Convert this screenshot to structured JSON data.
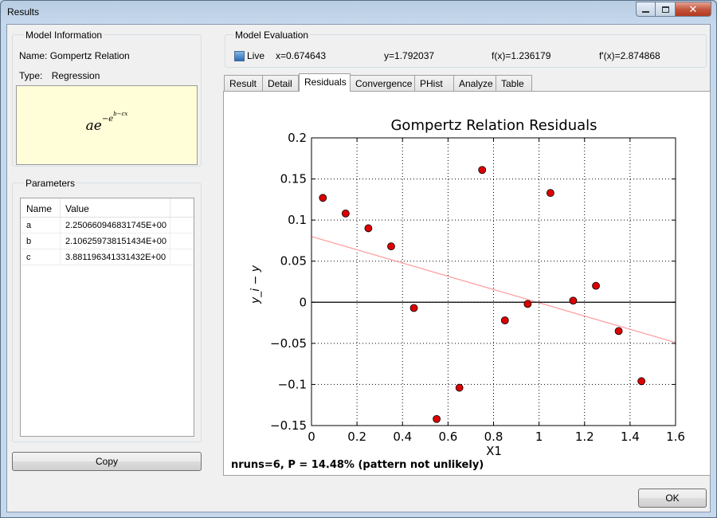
{
  "window": {
    "title": "Results"
  },
  "model_info": {
    "group_label": "Model Information",
    "name_label": "Name:",
    "name_value": "Gompertz Relation",
    "type_label": "Type:",
    "type_value": "Regression",
    "formula": {
      "base": "ae",
      "exp_prefix": "−e",
      "exp_sup": "b−cx"
    }
  },
  "parameters": {
    "group_label": "Parameters",
    "columns": [
      "Name",
      "Value"
    ],
    "rows": [
      {
        "name": "a",
        "value": "2.250660946831745E+00"
      },
      {
        "name": "b",
        "value": "2.106259738151434E+00"
      },
      {
        "name": "c",
        "value": "3.881196341331432E+00"
      }
    ]
  },
  "copy_button": "Copy",
  "model_eval": {
    "group_label": "Model Evaluation",
    "live_label": "Live",
    "live_checked": true,
    "x": "x=0.674643",
    "y": "y=1.792037",
    "fx": "f(x)=1.236179",
    "fpx": "f'(x)=2.874868"
  },
  "tabs": [
    "Result",
    "Detail",
    "Residuals",
    "Convergence",
    "PHist",
    "Analyze",
    "Table"
  ],
  "active_tab": "Residuals",
  "chart_data": {
    "type": "scatter",
    "title": "Gompertz Relation Residuals",
    "xlabel": "X1",
    "ylabel": "y_i − y",
    "xlim": [
      0,
      1.6
    ],
    "ylim": [
      -0.15,
      0.2
    ],
    "xticks": [
      "0",
      "0.2",
      "0.4",
      "0.6",
      "0.8",
      "1",
      "1.2",
      "1.4",
      "1.6"
    ],
    "yticks": [
      "0.2",
      "0.15",
      "0.1",
      "0.05",
      "0",
      "−0.05",
      "−0.1",
      "−0.15"
    ],
    "grid": true,
    "points": {
      "x": [
        0.05,
        0.15,
        0.25,
        0.35,
        0.45,
        0.55,
        0.65,
        0.75,
        0.85,
        0.95,
        1.05,
        1.15,
        1.25,
        1.35,
        1.45
      ],
      "y": [
        0.127,
        0.108,
        0.09,
        0.068,
        -0.007,
        -0.142,
        -0.104,
        0.161,
        -0.022,
        -0.002,
        0.133,
        0.002,
        0.02,
        -0.035,
        -0.096
      ],
      "color": "#dd0000"
    },
    "trend_line": {
      "x": [
        0,
        1.6
      ],
      "y": [
        0.08,
        -0.049
      ],
      "color": "#ff9999"
    },
    "zero_line": {
      "y": 0,
      "color": "#000000"
    }
  },
  "status_text": "nruns=6, P = 14.48% (pattern not unlikely)",
  "ok_button": "OK"
}
